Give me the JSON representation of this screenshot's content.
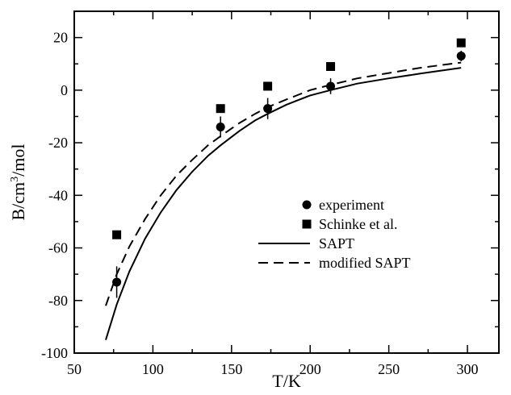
{
  "chart_data": {
    "type": "scatter",
    "xlabel": "T/K",
    "ylabel_parts": [
      "B/cm",
      "3",
      "/mol"
    ],
    "xlim": [
      50,
      320
    ],
    "ylim": [
      -100,
      30
    ],
    "x_ticks": [
      50,
      100,
      150,
      200,
      250,
      300
    ],
    "y_ticks": [
      -100,
      -80,
      -60,
      -40,
      -20,
      0,
      20
    ],
    "legend_position": "center-right",
    "grid": false,
    "series": [
      {
        "name": "experiment",
        "kind": "points",
        "marker": "circle",
        "points": [
          {
            "x": 77,
            "y": -73,
            "err": 6
          },
          {
            "x": 143,
            "y": -14,
            "err": 4
          },
          {
            "x": 173,
            "y": -7,
            "err": 4
          },
          {
            "x": 213,
            "y": 1.5,
            "err": 3
          },
          {
            "x": 296,
            "y": 13,
            "err": 2
          }
        ]
      },
      {
        "name": "Schinke et al.",
        "kind": "points",
        "marker": "square",
        "points": [
          {
            "x": 77,
            "y": -55
          },
          {
            "x": 143,
            "y": -7
          },
          {
            "x": 173,
            "y": 1.5
          },
          {
            "x": 213,
            "y": 9
          },
          {
            "x": 296,
            "y": 18
          }
        ]
      },
      {
        "name": "SAPT",
        "kind": "line",
        "dash": "solid",
        "points": [
          {
            "x": 70,
            "y": -95
          },
          {
            "x": 77,
            "y": -81.5
          },
          {
            "x": 85,
            "y": -69
          },
          {
            "x": 95,
            "y": -56.5
          },
          {
            "x": 105,
            "y": -46.5
          },
          {
            "x": 115,
            "y": -38
          },
          {
            "x": 125,
            "y": -31
          },
          {
            "x": 135,
            "y": -25
          },
          {
            "x": 143,
            "y": -21
          },
          {
            "x": 155,
            "y": -15.5
          },
          {
            "x": 165,
            "y": -11.5
          },
          {
            "x": 173,
            "y": -9
          },
          {
            "x": 185,
            "y": -5.5
          },
          {
            "x": 200,
            "y": -2
          },
          {
            "x": 213,
            "y": 0
          },
          {
            "x": 230,
            "y": 2.5
          },
          {
            "x": 250,
            "y": 4.5
          },
          {
            "x": 270,
            "y": 6.3
          },
          {
            "x": 296,
            "y": 8.5
          }
        ]
      },
      {
        "name": "modified SAPT",
        "kind": "line",
        "dash": "dashed",
        "points": [
          {
            "x": 70,
            "y": -82
          },
          {
            "x": 77,
            "y": -70
          },
          {
            "x": 85,
            "y": -59.5
          },
          {
            "x": 95,
            "y": -49
          },
          {
            "x": 105,
            "y": -40
          },
          {
            "x": 115,
            "y": -32.5
          },
          {
            "x": 125,
            "y": -26.5
          },
          {
            "x": 135,
            "y": -21
          },
          {
            "x": 143,
            "y": -17.5
          },
          {
            "x": 155,
            "y": -12.5
          },
          {
            "x": 165,
            "y": -9
          },
          {
            "x": 173,
            "y": -6.5
          },
          {
            "x": 185,
            "y": -3.5
          },
          {
            "x": 200,
            "y": 0
          },
          {
            "x": 213,
            "y": 2
          },
          {
            "x": 230,
            "y": 4.5
          },
          {
            "x": 250,
            "y": 6.5
          },
          {
            "x": 270,
            "y": 8.5
          },
          {
            "x": 296,
            "y": 10.5
          }
        ]
      }
    ]
  }
}
